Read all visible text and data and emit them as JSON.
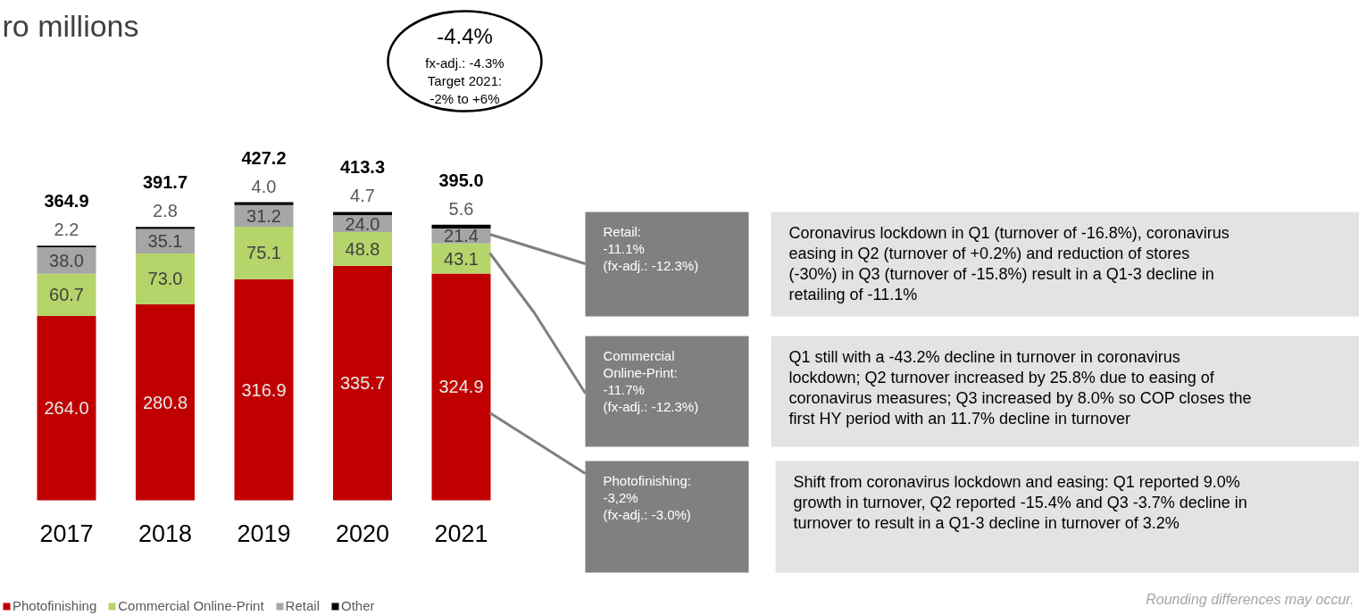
{
  "chart_data": {
    "type": "bar",
    "stacked": true,
    "title": "ro millions",
    "categories": [
      "2017",
      "2018",
      "2019",
      "2020",
      "2021"
    ],
    "series": [
      {
        "name": "Photofinishing",
        "color": "#c00000",
        "values": [
          264.0,
          280.8,
          316.9,
          335.7,
          324.9
        ],
        "value_labels": [
          "264.0",
          "280.8",
          "316.9",
          "335.7",
          "324.9"
        ]
      },
      {
        "name": "Commercial Online-Print",
        "color": "#b5d56a",
        "values": [
          60.7,
          73.0,
          75.1,
          48.8,
          43.1
        ],
        "value_labels": [
          "60.7",
          "73.0",
          "75.1",
          "48.8",
          "43.1"
        ]
      },
      {
        "name": "Retail",
        "color": "#a6a6a6",
        "values": [
          38.0,
          35.1,
          31.2,
          24.0,
          21.4
        ],
        "value_labels": [
          "38.0",
          "35.1",
          "31.2",
          "24.0",
          "21.4"
        ]
      },
      {
        "name": "Other",
        "color": "#000000",
        "values": [
          2.2,
          2.8,
          4.0,
          4.7,
          5.6
        ],
        "value_labels": [
          "2.2",
          "2.8",
          "4.0",
          "4.7",
          "5.6"
        ]
      }
    ],
    "totals": [
      "364.9",
      "391.7",
      "427.2",
      "413.3",
      "395.0"
    ],
    "legend": "bottom left",
    "annotations": [
      "-4.4%\nfx-adj.: -4.3%\nTarget 2021:\n-2% to +6%",
      "Retail:\n-11.1%\n(fx-adj.: -12.3%)",
      "Commercial\nOnline-Print:\n-11.7%\n(fx-adj.: -12.3%)",
      "Photofinishing:\n-3,2%\n(fx-adj.: -3.0%)",
      "Coronavirus lockdown in Q1 (turnover of -16.8%), coronavirus easing in Q2 (turnover of +0.2%) and reduction of stores (-30%) in Q3 (turnover of -15.8%) result in a Q1-3 decline in retailing of -11.1%",
      "Q1 still with a -43.2% decline in turnover in coronavirus lockdown; Q2 turnover increased by 25.8% due to easing of coronavirus measures; Q3 increased by 8.0% so COP closes the first HY period with an 11.7% decline in turnover",
      "Shift from coronavirus lockdown and easing: Q1 reported 9.0% growth in turnover, Q2 reported -15.4% and Q3 -3.7% decline in turnover to result in a Q1-3 decline in turnover of 3.2%",
      "Rounding differences may occur."
    ]
  }
}
